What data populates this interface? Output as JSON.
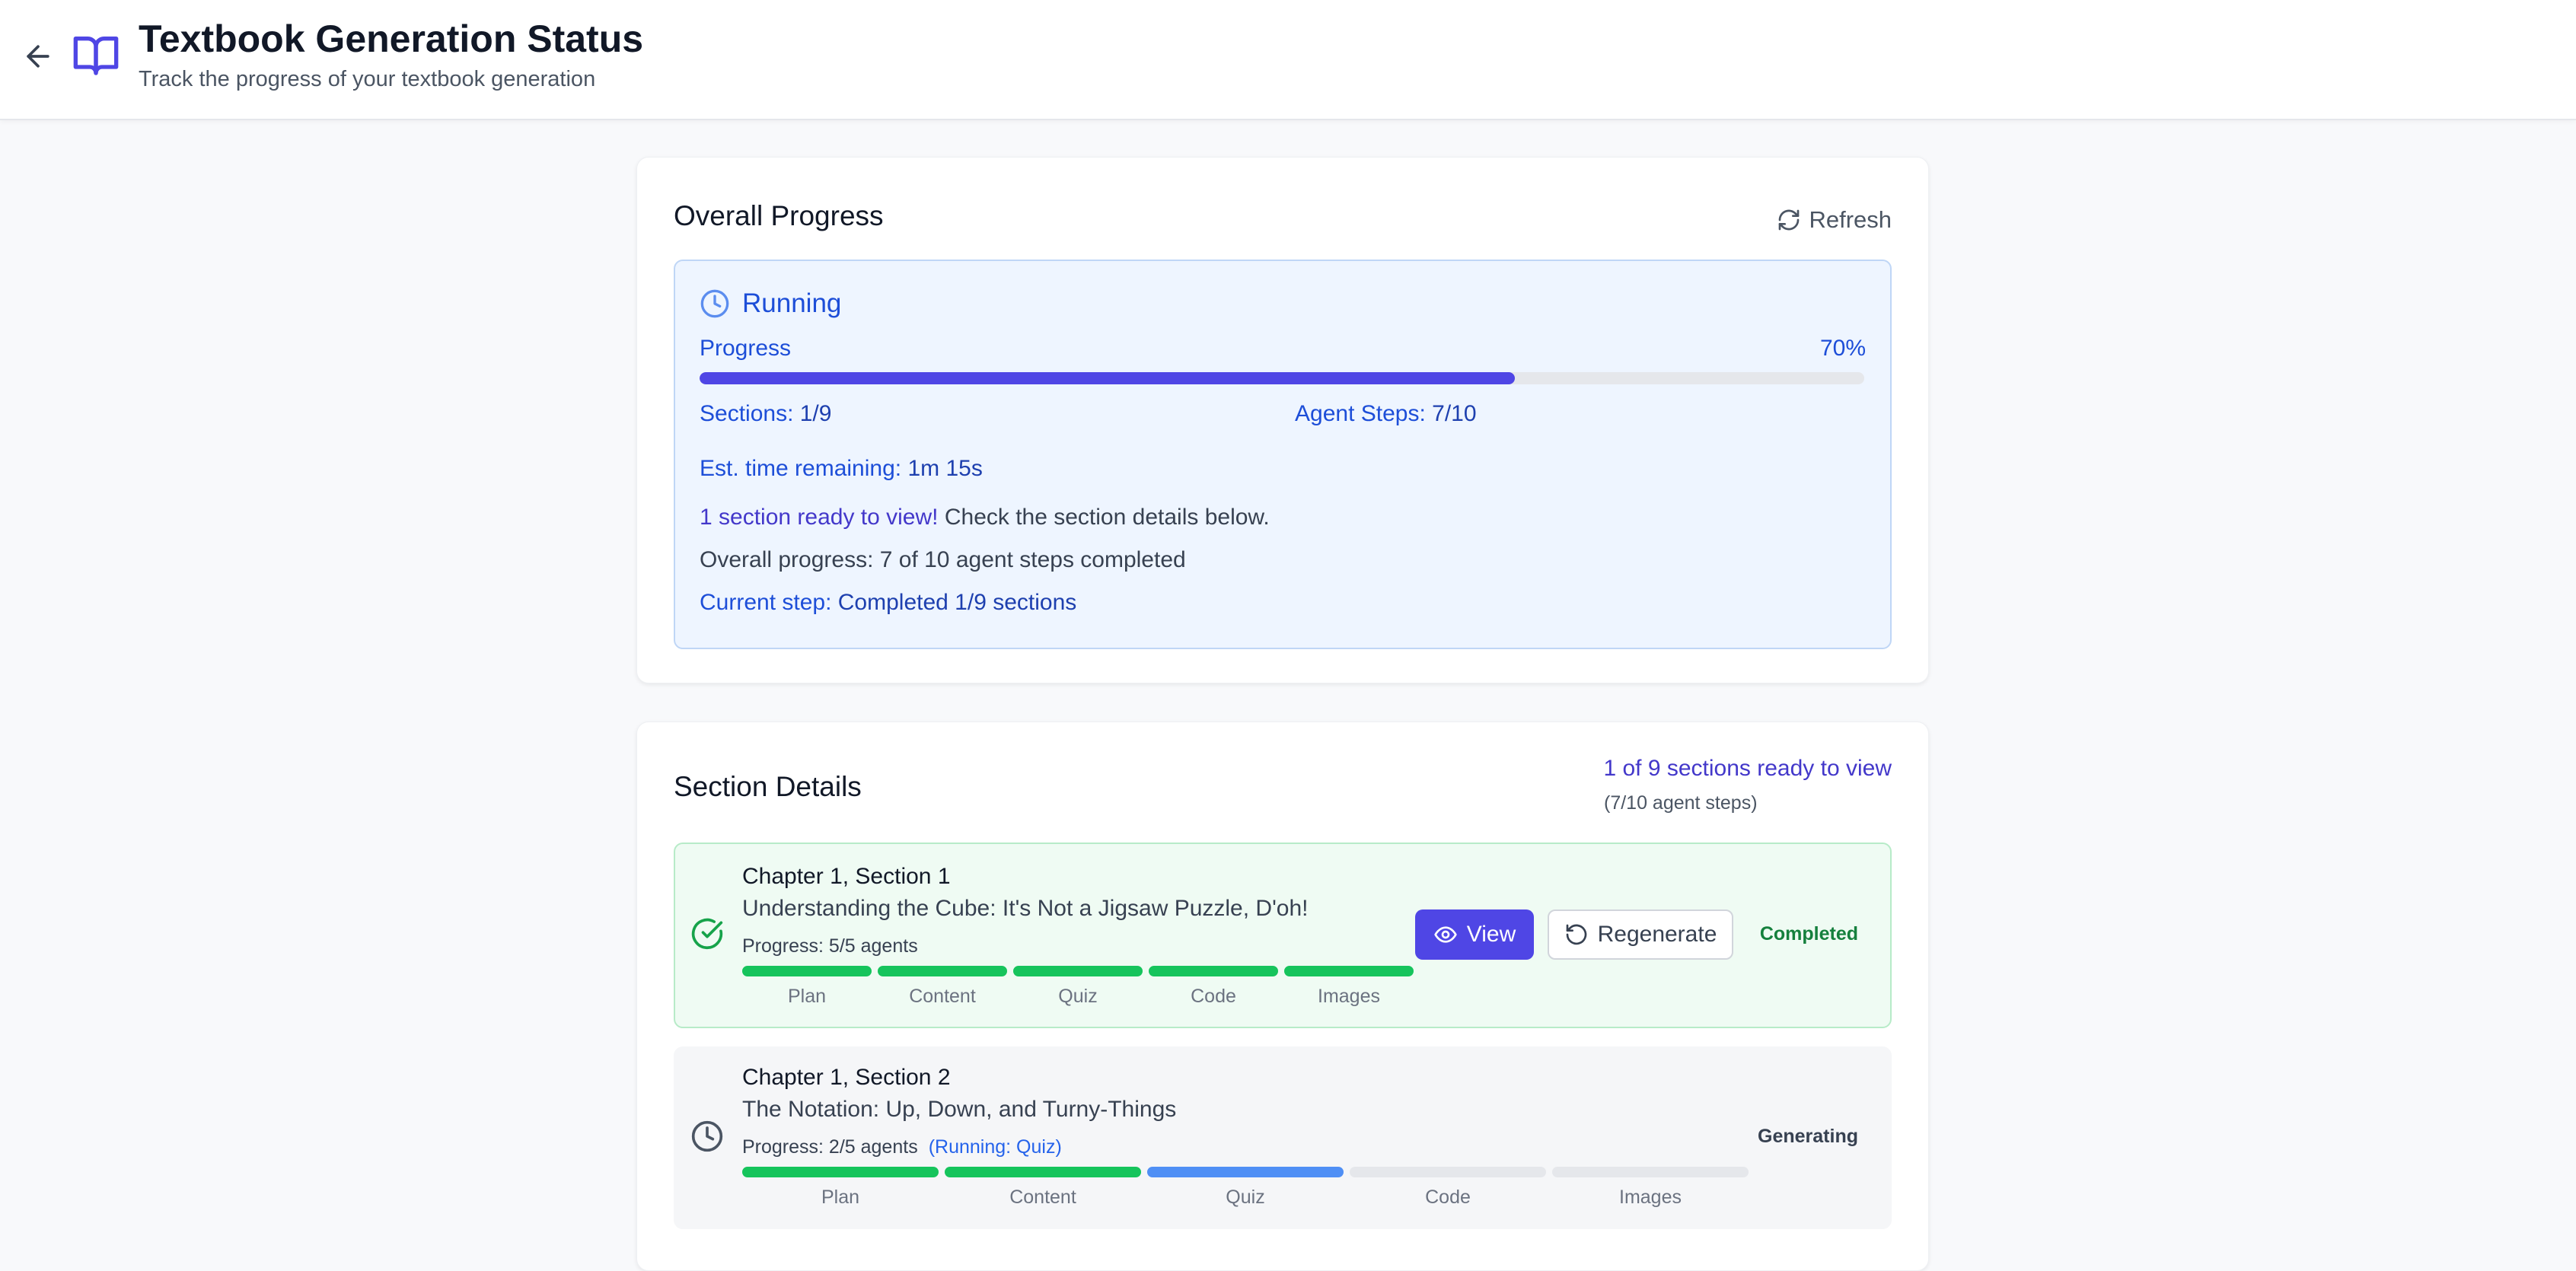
{
  "header": {
    "title": "Textbook Generation Status",
    "subtitle": "Track the progress of your textbook generation",
    "back_icon": "arrow-left-icon",
    "logo_icon": "book-open-icon",
    "accent": "#4f46e5"
  },
  "overall": {
    "title": "Overall Progress",
    "refresh_label": "Refresh",
    "status": "Running",
    "progress_label": "Progress",
    "progress_pct_text": "70%",
    "progress_fraction": 0.7,
    "sections_key": "Sections:",
    "sections_value": "1/9",
    "agent_steps_key": "Agent Steps:",
    "agent_steps_value": "7/10",
    "est_key": "Est. time remaining:",
    "est_value": "1m 15s",
    "ready_strong": "1 section ready to view!",
    "ready_rest": "Check the section details below.",
    "overall_line": "Overall progress: 7 of 10 agent steps completed",
    "current_key": "Current step:",
    "current_value": "Completed 1/9 sections"
  },
  "sections": {
    "title": "Section Details",
    "ready_summary": "1 of 9 sections ready to view",
    "steps_summary": "(7/10 agent steps)",
    "items": [
      {
        "chapter": "Chapter 1, Section 1",
        "name": "Understanding the Cube: It's Not a Jigsaw Puzzle, D'oh!",
        "progress_text": "Progress: 5/5 agents",
        "running_text": "",
        "status": "Completed",
        "status_color": "#15803d",
        "view_label": "View",
        "regenerate_label": "Regenerate",
        "agents": [
          {
            "label": "Plan",
            "state": "done"
          },
          {
            "label": "Content",
            "state": "done"
          },
          {
            "label": "Quiz",
            "state": "done"
          },
          {
            "label": "Code",
            "state": "done"
          },
          {
            "label": "Images",
            "state": "done"
          }
        ]
      },
      {
        "chapter": "Chapter 1, Section 2",
        "name": "The Notation: Up, Down, and Turny-Things",
        "progress_text": "Progress: 2/5 agents",
        "running_text": "(Running: Quiz)",
        "status": "Generating",
        "status_color": "#374151",
        "agents": [
          {
            "label": "Plan",
            "state": "done"
          },
          {
            "label": "Content",
            "state": "done"
          },
          {
            "label": "Quiz",
            "state": "running"
          },
          {
            "label": "Code",
            "state": "pending"
          },
          {
            "label": "Images",
            "state": "pending"
          }
        ]
      }
    ]
  },
  "colors": {
    "done": "#16c45c",
    "running": "#4f8ff5",
    "pending": "#e5e7eb"
  }
}
